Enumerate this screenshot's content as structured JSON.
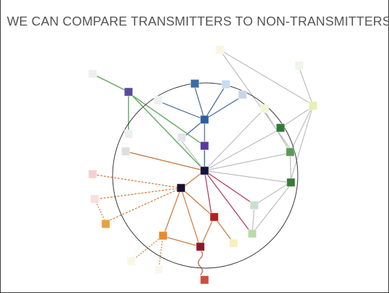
{
  "header": {
    "title": "WE CAN COMPARE TRANSMITTERS TO NON-TRANSMITTERS"
  }
}
